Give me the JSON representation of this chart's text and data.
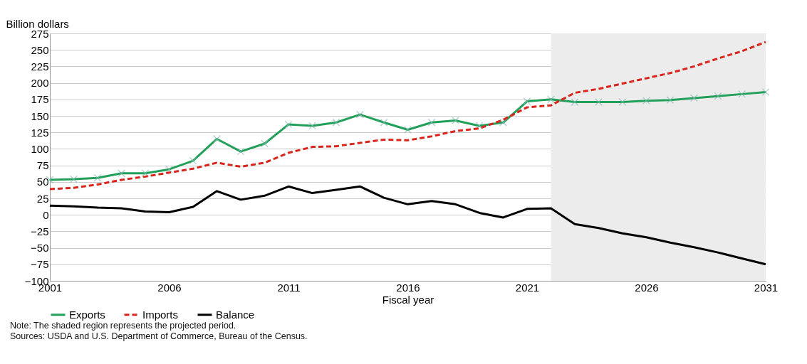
{
  "chart_data": {
    "type": "line",
    "ylabel": "Billion dollars",
    "xlabel": "Fiscal year",
    "x": [
      2001,
      2002,
      2003,
      2004,
      2005,
      2006,
      2007,
      2008,
      2009,
      2010,
      2011,
      2012,
      2013,
      2014,
      2015,
      2016,
      2017,
      2018,
      2019,
      2020,
      2021,
      2022,
      2023,
      2024,
      2025,
      2026,
      2027,
      2028,
      2029,
      2030,
      2031
    ],
    "series": [
      {
        "name": "Exports",
        "color": "#22a05a",
        "marker": "cross",
        "line_style": "solid",
        "values": [
          53,
          54,
          56,
          63,
          63,
          69,
          82,
          115,
          96,
          108,
          137,
          135,
          140,
          152,
          140,
          129,
          140,
          143,
          135,
          140,
          172,
          175,
          171,
          171,
          171,
          173,
          174,
          177,
          180,
          183,
          186
        ]
      },
      {
        "name": "Imports",
        "color": "#d9261c",
        "line_style": "dashed",
        "values": [
          39,
          41,
          46,
          53,
          58,
          64,
          70,
          79,
          73,
          79,
          94,
          103,
          104,
          109,
          114,
          113,
          119,
          127,
          131,
          144,
          163,
          166,
          185,
          191,
          199,
          207,
          215,
          225,
          237,
          248,
          262
        ]
      },
      {
        "name": "Balance",
        "color": "#000000",
        "line_style": "solid",
        "values": [
          14,
          13,
          11,
          10,
          5,
          4,
          12,
          36,
          23,
          29,
          43,
          33,
          38,
          43,
          26,
          16,
          21,
          16,
          3,
          -4,
          9,
          10,
          -14,
          -20,
          -28,
          -34,
          -42,
          -49,
          -57,
          -66,
          -75
        ]
      }
    ],
    "xlim": [
      2001,
      2031
    ],
    "xticks": [
      2001,
      2006,
      2011,
      2016,
      2021,
      2026,
      2031
    ],
    "ylim": [
      -100,
      275
    ],
    "yticks": [
      -100,
      -75,
      -50,
      -25,
      0,
      25,
      50,
      75,
      100,
      125,
      150,
      175,
      200,
      225,
      250,
      275
    ],
    "bands": [
      {
        "axis": "x",
        "from": 2022,
        "to": 2031,
        "color": "#ececec"
      }
    ],
    "grid": "y",
    "legend": "bottom",
    "annotations": [
      "Note: The shaded region represents the projected period.",
      "Sources: USDA and U.S. Department of Commerce, Bureau of the Census."
    ]
  }
}
